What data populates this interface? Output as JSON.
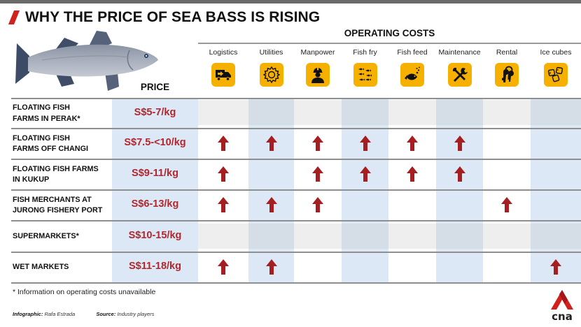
{
  "title": "WHY THE PRICE OF SEA BASS IS RISING",
  "operating_costs_header": "OPERATING COSTS",
  "price_header": "PRICE",
  "columns": [
    {
      "label": "Logistics",
      "icon": "truck-icon"
    },
    {
      "label": "Utilities",
      "icon": "gear-icon"
    },
    {
      "label": "Manpower",
      "icon": "worker-icon"
    },
    {
      "label": "Fish fry",
      "icon": "fish-fry-icon"
    },
    {
      "label": "Fish feed",
      "icon": "fish-feed-icon"
    },
    {
      "label": "Maintenance",
      "icon": "tools-icon"
    },
    {
      "label": "Rental",
      "icon": "keys-icon"
    },
    {
      "label": "Ice cubes",
      "icon": "ice-cubes-icon"
    }
  ],
  "rows": [
    {
      "label_lines": [
        "FLOATING FISH",
        "FARMS IN PERAK*"
      ],
      "price": "S$5-7/kg",
      "info_unavailable": true,
      "rising": []
    },
    {
      "label_lines": [
        "FLOATING FISH",
        "FARMS OFF CHANGI"
      ],
      "price": "S$7.5-<10/kg",
      "info_unavailable": false,
      "rising": [
        "Logistics",
        "Utilities",
        "Manpower",
        "Fish fry",
        "Fish feed",
        "Maintenance"
      ]
    },
    {
      "label_lines": [
        "FLOATING FISH FARMS",
        "IN KUKUP"
      ],
      "price": "S$9-11/kg",
      "info_unavailable": false,
      "rising": [
        "Logistics",
        "Manpower",
        "Fish fry",
        "Fish feed",
        "Maintenance"
      ]
    },
    {
      "label_lines": [
        "FISH MERCHANTS AT",
        "JURONG FISHERY PORT"
      ],
      "price": "S$6-13/kg",
      "info_unavailable": false,
      "rising": [
        "Logistics",
        "Utilities",
        "Manpower",
        "Rental"
      ]
    },
    {
      "label_lines": [
        "SUPERMARKETS*"
      ],
      "price": "S$10-15/kg",
      "info_unavailable": true,
      "rising": []
    },
    {
      "label_lines": [
        "WET MARKETS"
      ],
      "price": "S$11-18/kg",
      "info_unavailable": false,
      "rising": [
        "Logistics",
        "Utilities",
        "Ice cubes"
      ]
    }
  ],
  "footnote": "* Information on operating costs unavailable",
  "credits": {
    "infographic_label": "Infographic:",
    "infographic_value": "Rafa Estrada",
    "source_label": "Source:",
    "source_value": "Industry players"
  },
  "logo_text": "cna",
  "colors": {
    "accent_red": "#b3262b",
    "icon_yellow": "#f6b100",
    "column_blue": "#dce8f5",
    "brand_red": "#d0211c"
  },
  "chart_data": {
    "type": "table",
    "title": "WHY THE PRICE OF SEA BASS IS RISING",
    "column_group": "OPERATING COSTS",
    "columns": [
      "Price",
      "Logistics",
      "Utilities",
      "Manpower",
      "Fish fry",
      "Fish feed",
      "Maintenance",
      "Rental",
      "Ice cubes"
    ],
    "rows": [
      {
        "name": "Floating fish farms in Perak*",
        "price": "S$5-7/kg",
        "logistics": null,
        "utilities": null,
        "manpower": null,
        "fish_fry": null,
        "fish_feed": null,
        "maintenance": null,
        "rental": null,
        "ice_cubes": null
      },
      {
        "name": "Floating fish farms off Changi",
        "price": "S$7.5-<10/kg",
        "logistics": "up",
        "utilities": "up",
        "manpower": "up",
        "fish_fry": "up",
        "fish_feed": "up",
        "maintenance": "up",
        "rental": "",
        "ice_cubes": ""
      },
      {
        "name": "Floating fish farms in Kukup",
        "price": "S$9-11/kg",
        "logistics": "up",
        "utilities": "",
        "manpower": "up",
        "fish_fry": "up",
        "fish_feed": "up",
        "maintenance": "up",
        "rental": "",
        "ice_cubes": ""
      },
      {
        "name": "Fish merchants at Jurong Fishery Port",
        "price": "S$6-13/kg",
        "logistics": "up",
        "utilities": "up",
        "manpower": "up",
        "fish_fry": "",
        "fish_feed": "",
        "maintenance": "",
        "rental": "up",
        "ice_cubes": ""
      },
      {
        "name": "Supermarkets*",
        "price": "S$10-15/kg",
        "logistics": null,
        "utilities": null,
        "manpower": null,
        "fish_fry": null,
        "fish_feed": null,
        "maintenance": null,
        "rental": null,
        "ice_cubes": null
      },
      {
        "name": "Wet markets",
        "price": "S$11-18/kg",
        "logistics": "up",
        "utilities": "up",
        "manpower": "",
        "fish_fry": "",
        "fish_feed": "",
        "maintenance": "",
        "rental": "",
        "ice_cubes": "up"
      }
    ],
    "note": "* Information on operating costs unavailable"
  }
}
